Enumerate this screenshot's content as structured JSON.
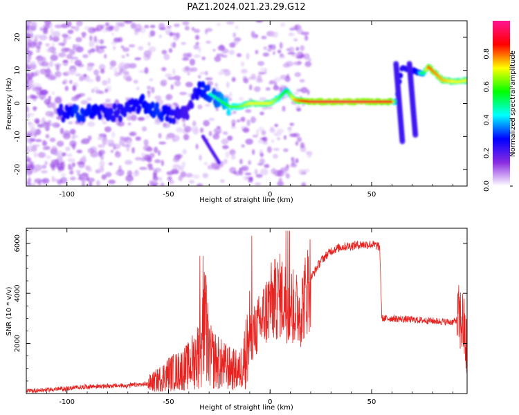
{
  "figure": {
    "title": "PAZ1.2024.021.23.29.G12"
  },
  "chart_data": [
    {
      "type": "heatmap",
      "xlabel": "Height of straight line (km)",
      "ylabel": "Frequency (Hz)",
      "xlim": [
        -120,
        97
      ],
      "ylim": [
        -25,
        25
      ],
      "xticks": [
        -100,
        -50,
        0,
        50
      ],
      "yticks": [
        -20,
        -10,
        0,
        10,
        20
      ],
      "colorbar": {
        "label": "Normalized spectral amplitude",
        "range": [
          0,
          1
        ],
        "ticks": [
          "0.0",
          "0.2",
          "0.4",
          "0.6",
          "0.8"
        ],
        "colormap": [
          "#ffffff",
          "#8a2be2",
          "#0000ff",
          "#00ffff",
          "#00ff00",
          "#ffff00",
          "#ff0000",
          "#ff1493"
        ]
      },
      "ridge": {
        "x": [
          -103,
          -95,
          -85,
          -75,
          -63,
          -55,
          -47,
          -40,
          -35,
          -30,
          -25,
          -20,
          -15,
          -10,
          -5,
          0,
          5,
          8,
          12,
          20,
          35,
          50,
          60,
          62,
          65,
          70,
          75,
          78,
          85,
          92,
          97
        ],
        "y": [
          -3,
          -3,
          -2.5,
          -3,
          0,
          -2.5,
          -4,
          -2,
          5,
          3,
          1,
          -1,
          -1,
          0,
          0,
          0,
          2,
          4,
          1,
          0.5,
          0.5,
          0.5,
          0.5,
          0.5,
          11,
          10,
          9,
          11,
          7,
          6.5,
          7
        ],
        "amplitude": [
          0.35,
          0.45,
          0.4,
          0.35,
          0.4,
          0.45,
          0.35,
          0.3,
          0.4,
          0.45,
          0.5,
          0.6,
          0.62,
          0.7,
          0.7,
          0.7,
          0.6,
          0.55,
          0.75,
          0.9,
          0.92,
          0.9,
          0.88,
          0.5,
          0.35,
          0.35,
          0.5,
          0.8,
          0.75,
          0.7,
          0.7
        ]
      },
      "grid": false
    },
    {
      "type": "line",
      "xlabel": "Height of straight line (km)",
      "ylabel": "SNR (10 * v/v)",
      "xlim": [
        -120,
        97
      ],
      "ylim": [
        0,
        6600
      ],
      "xticks": [
        -100,
        -50,
        0,
        50
      ],
      "yticks": [
        2000,
        4000,
        6000
      ],
      "color": "#e8221f",
      "series": [
        {
          "x": [
            -120,
            -110,
            -100,
            -90,
            -80,
            -70,
            -60,
            -55,
            -50,
            -45,
            -40,
            -35,
            -32,
            -30,
            -25,
            -20,
            -15,
            -12,
            -10,
            -5,
            0,
            5,
            10,
            15,
            20,
            25,
            30,
            35,
            40,
            45,
            50,
            53,
            54,
            55,
            60,
            70,
            80,
            90,
            93,
            95,
            97
          ],
          "y": [
            100,
            150,
            200,
            280,
            300,
            320,
            380,
            550,
            800,
            900,
            1100,
            1600,
            2800,
            1500,
            1200,
            1000,
            900,
            1600,
            2200,
            2800,
            3600,
            3900,
            3500,
            3300,
            4600,
            5300,
            5700,
            5850,
            5900,
            5950,
            5950,
            5900,
            5800,
            3000,
            3000,
            2950,
            2900,
            2850,
            3000,
            2800,
            1600
          ]
        }
      ],
      "grid": false
    }
  ]
}
